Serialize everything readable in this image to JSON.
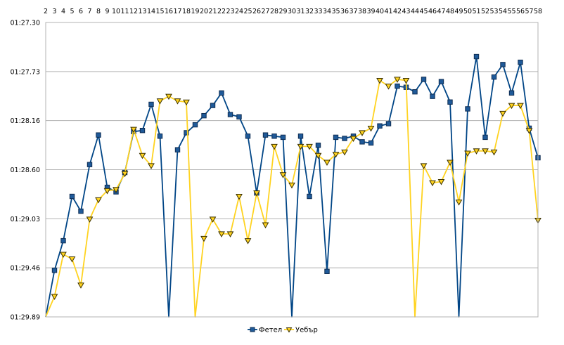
{
  "chart_data": {
    "type": "line",
    "title": "",
    "xlabel": "",
    "ylabel": "",
    "x": [
      2,
      3,
      4,
      5,
      6,
      7,
      8,
      9,
      10,
      11,
      12,
      13,
      14,
      15,
      16,
      17,
      18,
      19,
      20,
      21,
      22,
      23,
      24,
      25,
      26,
      27,
      28,
      29,
      30,
      31,
      32,
      33,
      34,
      35,
      36,
      37,
      38,
      39,
      40,
      41,
      42,
      43,
      44,
      45,
      46,
      47,
      48,
      49,
      50,
      51,
      52,
      53,
      54,
      55,
      56,
      57,
      58
    ],
    "x_tick_labels": [
      "2",
      "3",
      "4",
      "5",
      "6",
      "7",
      "8",
      "9",
      "10",
      "11",
      "12",
      "13",
      "14",
      "15",
      "16",
      "17",
      "18",
      "19",
      "20",
      "21",
      "22",
      "23",
      "24",
      "25",
      "26",
      "27",
      "28",
      "29",
      "30",
      "31",
      "32",
      "33",
      "34",
      "35",
      "36",
      "37",
      "38",
      "39",
      "40",
      "41",
      "42",
      "43",
      "44",
      "45",
      "46",
      "47",
      "48",
      "49",
      "50",
      "51",
      "52",
      "53",
      "54",
      "55",
      "56",
      "57",
      "58"
    ],
    "y_tick_labels": [
      "01:27.30",
      "01:27.73",
      "01:28.16",
      "01:28.60",
      "01:29.03",
      "01:29.46",
      "01:29.89"
    ],
    "ylim_seconds": [
      87.3,
      89.89
    ],
    "y_inverted": true,
    "grid": "horizontal",
    "legend_position": "bottom",
    "series": [
      {
        "name": "Фетел",
        "color": "#004586",
        "marker": "square",
        "values": [
          89.96,
          89.48,
          89.22,
          88.83,
          88.96,
          88.55,
          88.29,
          88.75,
          88.79,
          88.62,
          88.26,
          88.25,
          88.02,
          88.3,
          89.96,
          88.42,
          88.27,
          88.2,
          88.12,
          88.03,
          87.92,
          88.11,
          88.13,
          88.3,
          88.8,
          88.29,
          88.3,
          88.31,
          89.96,
          88.3,
          88.83,
          88.38,
          89.49,
          88.31,
          88.32,
          88.3,
          88.35,
          88.36,
          88.21,
          88.19,
          87.86,
          87.87,
          87.91,
          87.8,
          87.95,
          87.82,
          88.0,
          89.96,
          88.06,
          87.6,
          88.31,
          87.78,
          87.67,
          87.92,
          87.65,
          88.23,
          88.49
        ]
      },
      {
        "name": "Уебър",
        "color": "#ffd320",
        "marker": "triangle",
        "values": [
          89.96,
          89.71,
          89.34,
          89.38,
          89.61,
          89.03,
          88.86,
          88.78,
          88.77,
          88.63,
          88.24,
          88.47,
          88.56,
          87.99,
          87.95,
          87.99,
          88.0,
          89.96,
          89.2,
          89.03,
          89.16,
          89.16,
          88.83,
          89.22,
          88.8,
          89.08,
          88.39,
          88.64,
          88.73,
          88.39,
          88.39,
          88.47,
          88.53,
          88.46,
          88.44,
          88.32,
          88.27,
          88.23,
          87.81,
          87.86,
          87.8,
          87.81,
          89.96,
          88.56,
          88.71,
          88.7,
          88.53,
          88.88,
          88.45,
          88.43,
          88.43,
          88.44,
          88.1,
          88.03,
          88.03,
          88.25,
          89.04
        ]
      }
    ]
  }
}
